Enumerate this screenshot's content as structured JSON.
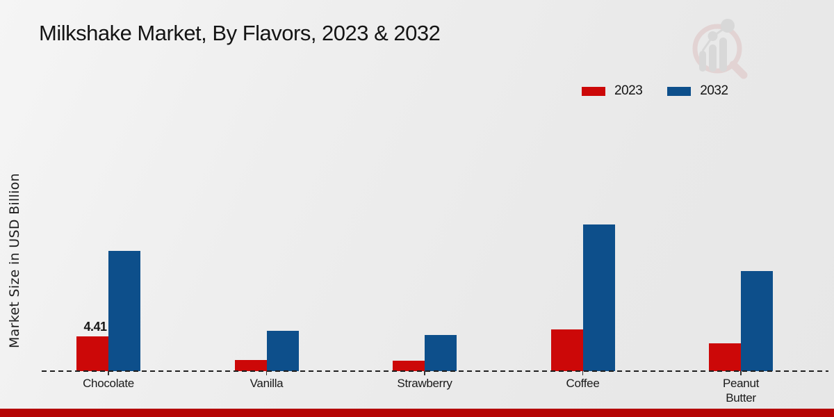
{
  "page": {
    "background_color": "#ececec",
    "footer_bar_color": "#b50404"
  },
  "header": {
    "title": "Milkshake Market, By Flavors, 2023 & 2032"
  },
  "icons": {
    "watermark": "magnifier-bar-chart-watermark"
  },
  "chart_data": {
    "type": "bar",
    "title": "Milkshake Market, By Flavors, 2023 & 2032",
    "ylabel": "Market Size in USD Billion",
    "xlabel": "",
    "categories": [
      "Chocolate",
      "Vanilla",
      "Strawberry",
      "Coffee",
      "Peanut Butter"
    ],
    "series": [
      {
        "name": "2023",
        "color": "#cc0808",
        "values": [
          4.41,
          1.4,
          1.3,
          5.3,
          3.55
        ]
      },
      {
        "name": "2032",
        "color": "#0d4f8b",
        "values": [
          15.2,
          5.1,
          4.55,
          18.5,
          12.65
        ]
      }
    ],
    "bar_labels": [
      {
        "series_index": 0,
        "category_index": 0,
        "text": "4.41"
      }
    ],
    "ylim": [
      0,
      24
    ],
    "grid": false,
    "legend_position": "top-right",
    "axis_baseline": "dashed"
  }
}
